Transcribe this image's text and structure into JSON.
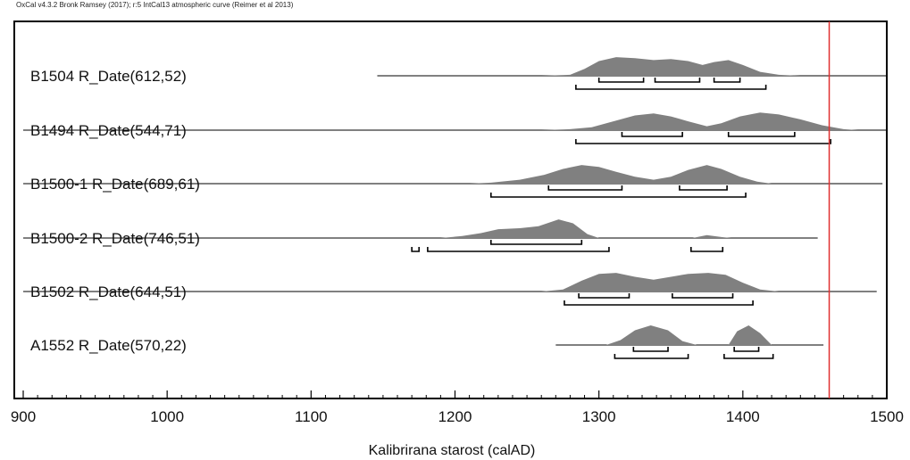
{
  "header": {
    "text": "OxCal v4.3.2 Bronk Ramsey (2017); r:5 IntCal13 atmospheric curve (Reimer et al 2013)"
  },
  "chart_data": {
    "type": "area",
    "xlabel": "Kalibrirana starost (calAD)",
    "xlim": [
      900,
      1500
    ],
    "x_ticks": [
      900,
      1000,
      1100,
      1200,
      1300,
      1400,
      1500
    ],
    "reference_line_x": 1460,
    "colors": {
      "distribution": "#808080",
      "reference_line": "#e03030",
      "axis": "#000000"
    },
    "series": [
      {
        "label": "B1504 R_Date(612,52)",
        "baseline": [
          1146,
          1500
        ],
        "density": [
          [
            1146,
            0
          ],
          [
            1260,
            0
          ],
          [
            1280,
            0.05
          ],
          [
            1290,
            0.35
          ],
          [
            1300,
            0.75
          ],
          [
            1312,
            0.95
          ],
          [
            1325,
            0.9
          ],
          [
            1338,
            0.8
          ],
          [
            1350,
            0.85
          ],
          [
            1362,
            0.75
          ],
          [
            1372,
            0.55
          ],
          [
            1380,
            0.7
          ],
          [
            1390,
            0.8
          ],
          [
            1400,
            0.55
          ],
          [
            1412,
            0.2
          ],
          [
            1425,
            0.05
          ],
          [
            1440,
            0
          ],
          [
            1500,
            0
          ]
        ],
        "ranges_68": [
          [
            1300,
            1331
          ],
          [
            1339,
            1370
          ],
          [
            1380,
            1398
          ]
        ],
        "ranges_95": [
          [
            1284,
            1416
          ]
        ]
      },
      {
        "label": "B1494 R_Date(544,71)",
        "baseline": [
          900,
          1500
        ],
        "density": [
          [
            1260,
            0
          ],
          [
            1280,
            0.05
          ],
          [
            1295,
            0.15
          ],
          [
            1310,
            0.45
          ],
          [
            1325,
            0.75
          ],
          [
            1338,
            0.85
          ],
          [
            1350,
            0.7
          ],
          [
            1362,
            0.45
          ],
          [
            1375,
            0.2
          ],
          [
            1385,
            0.35
          ],
          [
            1398,
            0.7
          ],
          [
            1412,
            0.9
          ],
          [
            1425,
            0.8
          ],
          [
            1440,
            0.55
          ],
          [
            1455,
            0.25
          ],
          [
            1470,
            0.05
          ],
          [
            1480,
            0
          ]
        ],
        "ranges_68": [
          [
            1316,
            1358
          ],
          [
            1390,
            1436
          ]
        ],
        "ranges_95": [
          [
            1284,
            1461
          ]
        ]
      },
      {
        "label": "B1500-1 R_Date(689,61)",
        "baseline": [
          900,
          1497
        ],
        "density": [
          [
            1210,
            0
          ],
          [
            1225,
            0.05
          ],
          [
            1245,
            0.2
          ],
          [
            1262,
            0.45
          ],
          [
            1275,
            0.75
          ],
          [
            1288,
            0.95
          ],
          [
            1300,
            0.85
          ],
          [
            1312,
            0.6
          ],
          [
            1325,
            0.35
          ],
          [
            1338,
            0.2
          ],
          [
            1350,
            0.35
          ],
          [
            1362,
            0.7
          ],
          [
            1375,
            0.95
          ],
          [
            1385,
            0.75
          ],
          [
            1398,
            0.35
          ],
          [
            1410,
            0.1
          ],
          [
            1420,
            0
          ]
        ],
        "ranges_68": [
          [
            1265,
            1316
          ],
          [
            1356,
            1389
          ]
        ],
        "ranges_95": [
          [
            1225,
            1402
          ]
        ]
      },
      {
        "label": "B1500-2 R_Date(746,51)",
        "baseline": [
          900,
          1452
        ],
        "density": [
          [
            1190,
            0
          ],
          [
            1205,
            0.1
          ],
          [
            1218,
            0.25
          ],
          [
            1230,
            0.45
          ],
          [
            1245,
            0.5
          ],
          [
            1258,
            0.6
          ],
          [
            1272,
            0.95
          ],
          [
            1282,
            0.75
          ],
          [
            1292,
            0.2
          ],
          [
            1300,
            0
          ],
          [
            1365,
            0
          ],
          [
            1375,
            0.15
          ],
          [
            1385,
            0.05
          ],
          [
            1392,
            0
          ]
        ],
        "ranges_68": [
          [
            1225,
            1288
          ]
        ],
        "ranges_95": [
          [
            1170,
            1175
          ],
          [
            1181,
            1307
          ],
          [
            1364,
            1386
          ]
        ]
      },
      {
        "label": "B1502 R_Date(644,51)",
        "baseline": [
          900,
          1493
        ],
        "density": [
          [
            1260,
            0
          ],
          [
            1275,
            0.1
          ],
          [
            1288,
            0.55
          ],
          [
            1300,
            0.9
          ],
          [
            1312,
            0.95
          ],
          [
            1325,
            0.75
          ],
          [
            1338,
            0.6
          ],
          [
            1350,
            0.75
          ],
          [
            1362,
            0.9
          ],
          [
            1376,
            0.95
          ],
          [
            1388,
            0.85
          ],
          [
            1400,
            0.45
          ],
          [
            1412,
            0.1
          ],
          [
            1425,
            0
          ]
        ],
        "ranges_68": [
          [
            1286,
            1321
          ],
          [
            1351,
            1393
          ]
        ],
        "ranges_95": [
          [
            1276,
            1407
          ]
        ]
      },
      {
        "label": "A1552 R_Date(570,22)",
        "baseline": [
          1270,
          1456
        ],
        "density": [
          [
            1305,
            0
          ],
          [
            1315,
            0.25
          ],
          [
            1325,
            0.75
          ],
          [
            1336,
            1.0
          ],
          [
            1348,
            0.75
          ],
          [
            1358,
            0.2
          ],
          [
            1368,
            0
          ],
          [
            1390,
            0
          ],
          [
            1396,
            0.7
          ],
          [
            1404,
            1.0
          ],
          [
            1412,
            0.6
          ],
          [
            1420,
            0
          ]
        ],
        "ranges_68": [
          [
            1324,
            1348
          ],
          [
            1394,
            1411
          ]
        ],
        "ranges_95": [
          [
            1311,
            1362
          ],
          [
            1387,
            1421
          ]
        ]
      }
    ]
  }
}
